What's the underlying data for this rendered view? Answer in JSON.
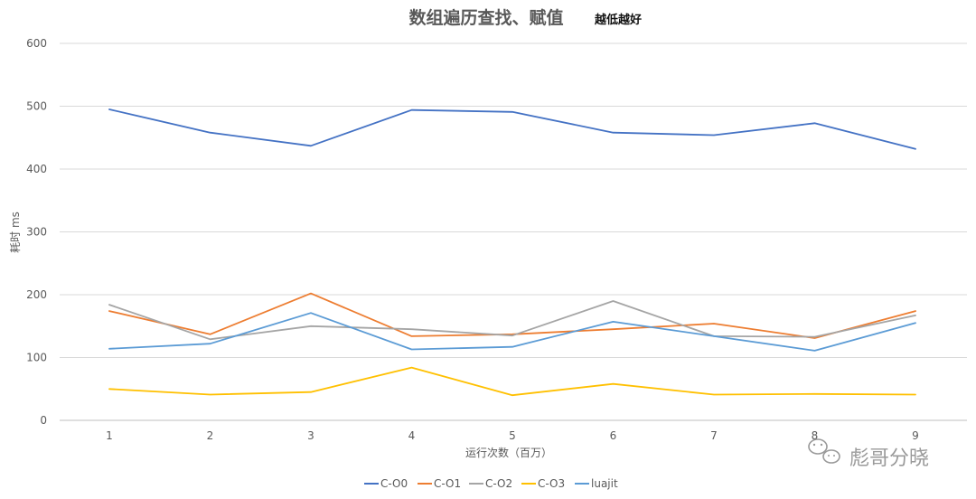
{
  "chart_data": {
    "type": "line",
    "title": "数组遍历查找、赋值",
    "subtitle": "越低越好",
    "xlabel": "运行次数（百万）",
    "ylabel": "耗时 ms",
    "ylim": [
      0,
      600
    ],
    "yticks": [
      0,
      100,
      200,
      300,
      400,
      500,
      600
    ],
    "categories": [
      "1",
      "2",
      "3",
      "4",
      "5",
      "6",
      "7",
      "8",
      "9"
    ],
    "grid": "horizontal",
    "legend_position": "bottom",
    "series": [
      {
        "name": "C-O0",
        "color": "#4472c4",
        "values": [
          495,
          458,
          437,
          494,
          491,
          458,
          454,
          473,
          432
        ]
      },
      {
        "name": "C-O1",
        "color": "#ed7d31",
        "values": [
          174,
          137,
          202,
          134,
          137,
          145,
          154,
          131,
          174
        ]
      },
      {
        "name": "C-O2",
        "color": "#a5a5a5",
        "values": [
          184,
          129,
          150,
          145,
          135,
          190,
          134,
          133,
          167
        ]
      },
      {
        "name": "C-O3",
        "color": "#ffc000",
        "values": [
          50,
          41,
          45,
          84,
          40,
          58,
          41,
          42,
          41
        ]
      },
      {
        "name": "luajit",
        "color": "#5b9bd5",
        "values": [
          114,
          122,
          171,
          113,
          117,
          157,
          134,
          111,
          155
        ]
      }
    ]
  },
  "watermark": {
    "text": "彪哥分晓",
    "icon": "wechat-icon"
  }
}
